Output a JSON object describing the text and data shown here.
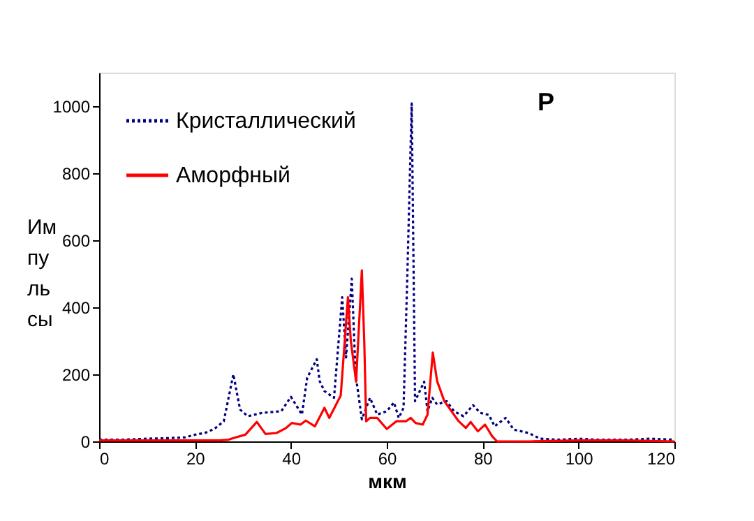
{
  "chart_data": {
    "type": "line",
    "xlabel": "мкм",
    "ylabel": "Импульсы",
    "xlim": [
      0,
      120
    ],
    "ylim": [
      0,
      1100
    ],
    "xticks": [
      0,
      20,
      40,
      60,
      80,
      100,
      120
    ],
    "yticks": [
      0,
      200,
      400,
      600,
      800,
      1000
    ],
    "grid": false,
    "legend": "top left",
    "marker": "none",
    "annotations": [
      "P"
    ],
    "series": [
      {
        "name": "Кристаллический",
        "color": "#000080",
        "line_style": "dotted",
        "x": [
          0,
          5,
          10,
          15,
          18,
          20,
          22,
          24,
          26,
          28,
          29.4,
          31,
          34,
          38,
          40,
          42.3,
          43.4,
          45.4,
          46,
          47,
          49,
          50.7,
          51.5,
          52.7,
          53.5,
          54.8,
          56.5,
          58,
          60,
          61.5,
          62.5,
          63.5,
          64.3,
          65.2,
          65.9,
          67.8,
          68.5,
          69.5,
          70.5,
          72.5,
          74,
          76,
          78,
          79.5,
          81.3,
          82.5,
          84.8,
          86.5,
          89.6,
          92,
          96,
          100,
          104,
          110,
          115,
          120
        ],
        "values": [
          5,
          5,
          8,
          10,
          12,
          20,
          25,
          37,
          60,
          200,
          95,
          75,
          85,
          90,
          133,
          80,
          190,
          245,
          180,
          150,
          130,
          430,
          250,
          485,
          200,
          66,
          130,
          80,
          90,
          116,
          70,
          100,
          500,
          1008,
          120,
          178,
          90,
          130,
          110,
          120,
          90,
          75,
          108,
          85,
          79,
          45,
          70,
          35,
          25,
          8,
          5,
          8,
          5,
          5,
          8,
          5
        ]
      },
      {
        "name": "Аморфный",
        "color": "#ff0000",
        "line_style": "solid",
        "x": [
          0,
          10,
          20,
          25,
          27,
          28,
          30.5,
          32.9,
          34.7,
          37,
          39,
          40.2,
          42,
          43.1,
          45,
          47,
          48,
          50.4,
          51.9,
          52.5,
          53.6,
          54.8,
          55.3,
          55.7,
          56.5,
          58,
          60,
          62,
          64,
          65,
          66,
          67.5,
          68.5,
          69.6,
          70.5,
          72,
          75,
          76.5,
          77.5,
          79,
          80.5,
          82,
          83,
          90,
          100,
          110,
          120
        ],
        "values": [
          3,
          3,
          3,
          3,
          5,
          10,
          20,
          58,
          22,
          25,
          40,
          55,
          50,
          62,
          45,
          100,
          70,
          137,
          430,
          300,
          178,
          510,
          300,
          60,
          70,
          70,
          37,
          60,
          60,
          70,
          55,
          50,
          80,
          265,
          180,
          120,
          60,
          40,
          58,
          30,
          50,
          15,
          0,
          0,
          3,
          3,
          0
        ]
      }
    ]
  }
}
